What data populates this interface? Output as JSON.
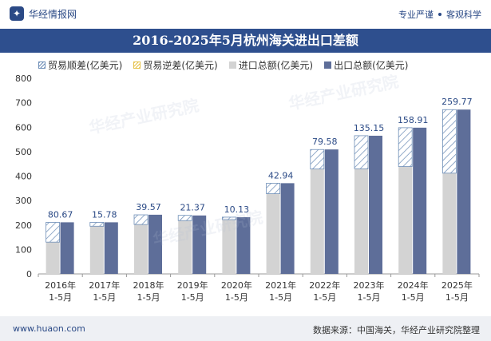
{
  "header": {
    "brand": "华经情报网",
    "slogan_left": "专业严谨",
    "slogan_right": "客观科学"
  },
  "footer": {
    "website": "www.huaon.com",
    "source": "数据来源：中国海关，华经产业研究院整理"
  },
  "watermarks": [
    "华经产业研究院",
    "华经产业研究院",
    "华经产业研究院"
  ],
  "colors": {
    "title_bg": "#2e4f8e",
    "import": "#d3d3d3",
    "export": "#5e6e99",
    "surplus_hatch": "#6f8fb8"
  },
  "chart_data": {
    "type": "bar",
    "title": "2016-2025年5月杭州海关进出口差额",
    "categories": [
      [
        "2016年",
        "1-5月"
      ],
      [
        "2017年",
        "1-5月"
      ],
      [
        "2018年",
        "1-5月"
      ],
      [
        "2019年",
        "1-5月"
      ],
      [
        "2020年",
        "1-5月"
      ],
      [
        "2021年",
        "1-5月"
      ],
      [
        "2022年",
        "1-5月"
      ],
      [
        "2023年",
        "1-5月"
      ],
      [
        "2024年",
        "1-5月"
      ],
      [
        "2025年",
        "1-5月"
      ]
    ],
    "legend": [
      "贸易顺差(亿美元)",
      "贸易逆差(亿美元)",
      "进口总额(亿美元)",
      "出口总额(亿美元)"
    ],
    "series": [
      {
        "name": "贸易顺差(亿美元)",
        "values": [
          80.67,
          15.78,
          39.57,
          21.37,
          10.13,
          42.94,
          79.58,
          135.15,
          158.91,
          259.77
        ]
      },
      {
        "name": "贸易逆差(亿美元)",
        "values": [
          0,
          0,
          0,
          0,
          0,
          0,
          0,
          0,
          0,
          0
        ]
      },
      {
        "name": "进口总额(亿美元)",
        "values": [
          130,
          195,
          202,
          218,
          222,
          328,
          429,
          430,
          439,
          412
        ]
      },
      {
        "name": "出口总额(亿美元)",
        "values": [
          211,
          211,
          242,
          239,
          232,
          371,
          509,
          565,
          598,
          672
        ]
      }
    ],
    "data_labels": [
      "80.67",
      "15.78",
      "39.57",
      "21.37",
      "10.13",
      "42.94",
      "79.58",
      "135.15",
      "158.91",
      "259.77"
    ],
    "yticks": [
      "0",
      "100",
      "200",
      "300",
      "400",
      "500",
      "600",
      "700",
      "800"
    ],
    "ylim": [
      0,
      800
    ],
    "xlabel": "",
    "ylabel": ""
  }
}
